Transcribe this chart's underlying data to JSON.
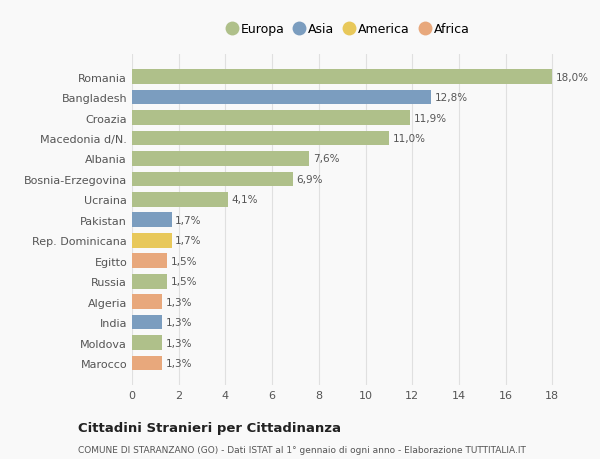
{
  "categories": [
    "Romania",
    "Bangladesh",
    "Croazia",
    "Macedonia d/N.",
    "Albania",
    "Bosnia-Erzegovina",
    "Ucraina",
    "Pakistan",
    "Rep. Dominicana",
    "Egitto",
    "Russia",
    "Algeria",
    "India",
    "Moldova",
    "Marocco"
  ],
  "values": [
    18.0,
    12.8,
    11.9,
    11.0,
    7.6,
    6.9,
    4.1,
    1.7,
    1.7,
    1.5,
    1.5,
    1.3,
    1.3,
    1.3,
    1.3
  ],
  "labels": [
    "18,0%",
    "12,8%",
    "11,9%",
    "11,0%",
    "7,6%",
    "6,9%",
    "4,1%",
    "1,7%",
    "1,7%",
    "1,5%",
    "1,5%",
    "1,3%",
    "1,3%",
    "1,3%",
    "1,3%"
  ],
  "continents": [
    "Europa",
    "Asia",
    "Europa",
    "Europa",
    "Europa",
    "Europa",
    "Europa",
    "Asia",
    "America",
    "Africa",
    "Europa",
    "Africa",
    "Asia",
    "Europa",
    "Africa"
  ],
  "colors": {
    "Europa": "#afc08a",
    "Asia": "#7b9dbf",
    "America": "#e8c85a",
    "Africa": "#e8a87c"
  },
  "legend_order": [
    "Europa",
    "Asia",
    "America",
    "Africa"
  ],
  "title": "Cittadini Stranieri per Cittadinanza",
  "subtitle": "COMUNE DI STARANZANO (GO) - Dati ISTAT al 1° gennaio di ogni anno - Elaborazione TUTTITALIA.IT",
  "xlim": [
    0,
    18
  ],
  "xticks": [
    0,
    2,
    4,
    6,
    8,
    10,
    12,
    14,
    16,
    18
  ],
  "background_color": "#f9f9f9",
  "grid_color": "#e0e0e0"
}
